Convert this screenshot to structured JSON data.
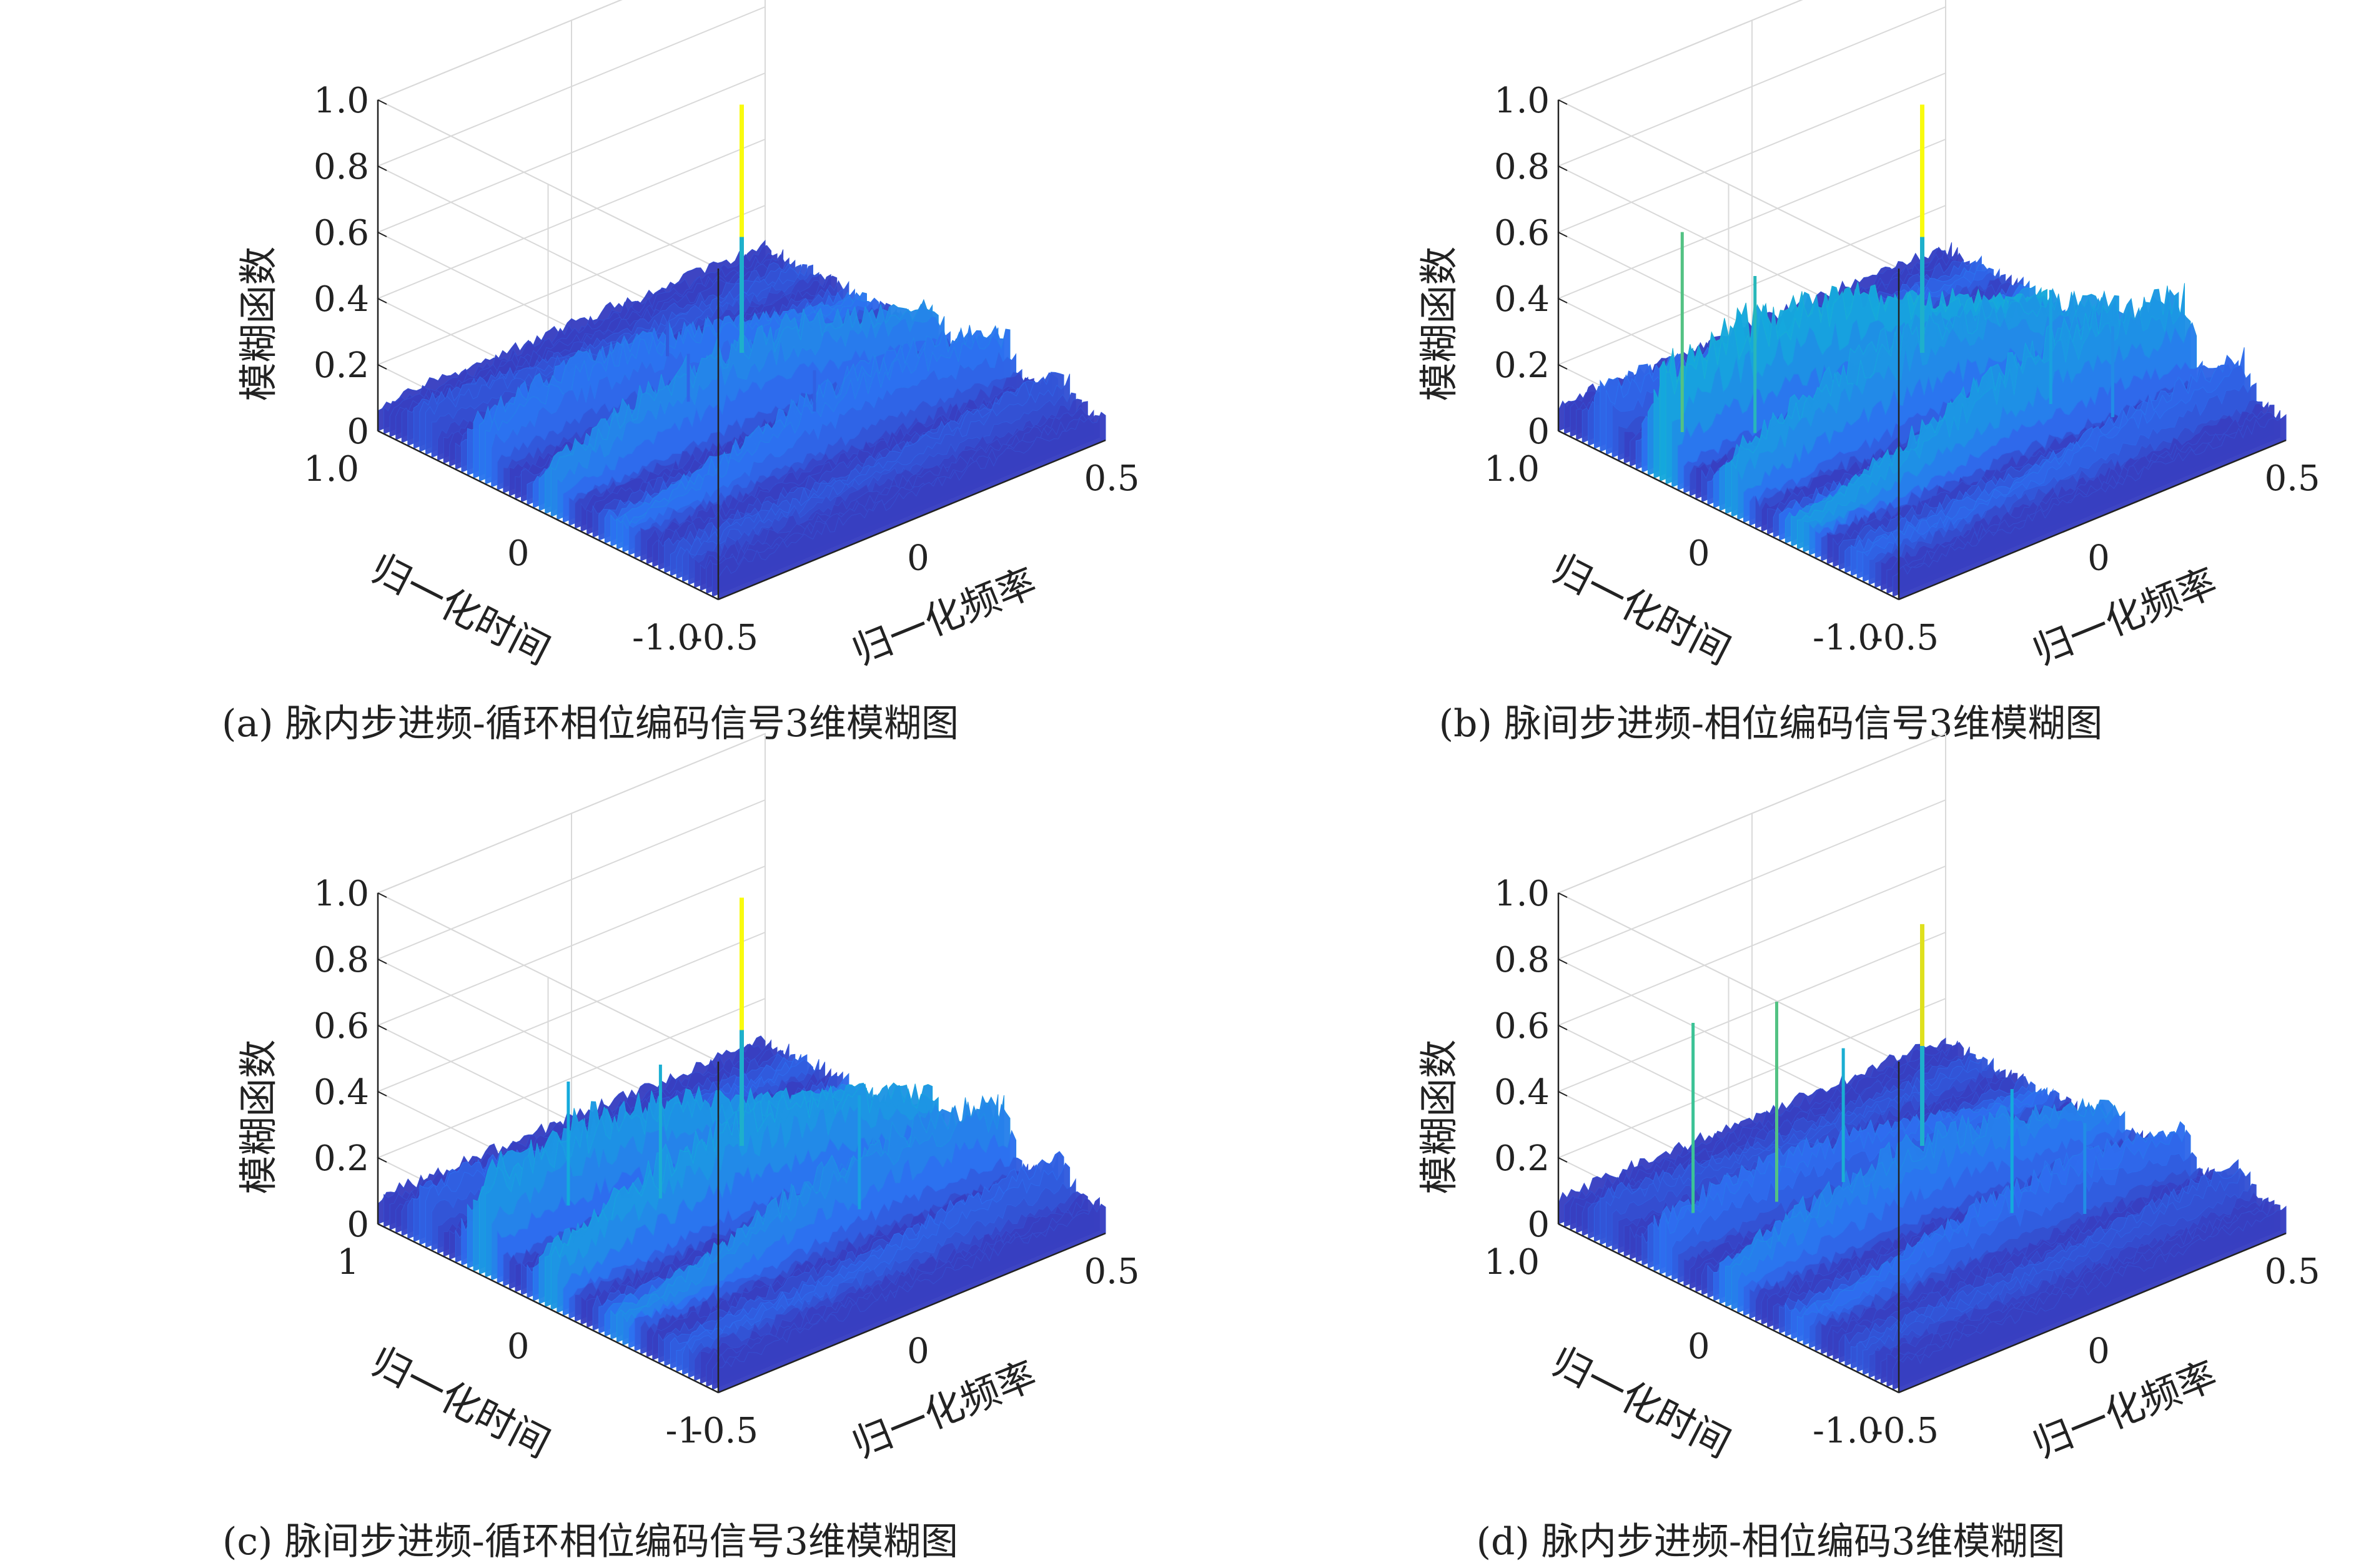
{
  "figure_captions": [
    "(a) 脉内步进频-循环相位编码信号3维模糊图",
    "(b) 脉间步进频-相位编码信号3维模糊图",
    "(c) 脉间步进频-循环相位编码信号3维模糊图",
    "(d) 脉内步进频-相位编码3维模糊图"
  ],
  "chart_data": [
    {
      "type": "surface3d",
      "title": "(a) 脉内步进频-循环相位编码信号3维模糊图",
      "xlabel": "归一化频率",
      "ylabel": "归一化时间",
      "zlabel": "模糊函数",
      "x_ticks": [
        "-0.5",
        "0",
        "0.5"
      ],
      "y_ticks": [
        "1.0",
        "0",
        "-1.0"
      ],
      "z_ticks": [
        "0",
        "0.2",
        "0.4",
        "0.6",
        "0.8",
        "1.0"
      ],
      "xlim": [
        -0.5,
        0.5
      ],
      "ylim": [
        -1.0,
        1.0
      ],
      "zlim": [
        0,
        1.0
      ],
      "colormap": "parula",
      "main_peak": {
        "x": 0,
        "y": 0,
        "z": 1.0
      },
      "ridges": [
        {
          "y": 0.75,
          "x_center": -0.5,
          "level": 0.15
        },
        {
          "y": 0.4,
          "x_center": -0.2,
          "level": 0.25
        },
        {
          "y": 0.0,
          "x_center": 0.0,
          "level": 0.3
        },
        {
          "y": -0.4,
          "x_center": 0.2,
          "level": 0.25
        },
        {
          "y": -0.75,
          "x_center": 0.45,
          "level": 0.15
        }
      ],
      "spikes": [
        {
          "x": -0.05,
          "y": 0.2,
          "z": 0.22
        },
        {
          "x": 0.1,
          "y": -0.2,
          "z": 0.2
        },
        {
          "x": 0.05,
          "y": 0.55,
          "z": 0.18
        }
      ],
      "floor": 0.1
    },
    {
      "type": "surface3d",
      "title": "(b) 脉间步进频-相位编码信号3维模糊图",
      "xlabel": "归一化频率",
      "ylabel": "归一化时间",
      "zlabel": "模糊函数",
      "x_ticks": [
        "-0.5",
        "0",
        "0.5"
      ],
      "y_ticks": [
        "1.0",
        "0",
        "-1.0"
      ],
      "z_ticks": [
        "0",
        "0.2",
        "0.4",
        "0.6",
        "0.8",
        "1.0"
      ],
      "xlim": [
        -0.5,
        0.5
      ],
      "ylim": [
        -1.0,
        1.0
      ],
      "zlim": [
        0,
        1.0
      ],
      "colormap": "parula",
      "main_peak": {
        "x": 0,
        "y": 0,
        "z": 1.0
      },
      "ridges": [
        {
          "y": 0.75,
          "x_center": -0.45,
          "level": 0.2
        },
        {
          "y": 0.4,
          "x_center": -0.25,
          "level": 0.4
        },
        {
          "y": 0.0,
          "x_center": 0.0,
          "level": 0.35
        },
        {
          "y": -0.4,
          "x_center": 0.25,
          "level": 0.35
        },
        {
          "y": -0.75,
          "x_center": 0.45,
          "level": 0.2
        }
      ],
      "spikes": [
        {
          "x": -0.4,
          "y": 0.5,
          "z": 0.68
        },
        {
          "x": -0.3,
          "y": 0.3,
          "z": 0.55
        },
        {
          "x": 0.2,
          "y": -0.3,
          "z": 0.42
        },
        {
          "x": 0.25,
          "y": -0.55,
          "z": 0.35
        }
      ],
      "floor": 0.1
    },
    {
      "type": "surface3d",
      "title": "(c) 脉间步进频-循环相位编码信号3维模糊图",
      "xlabel": "归一化频率",
      "ylabel": "归一化时间",
      "zlabel": "模糊函数",
      "x_ticks": [
        "-0.5",
        "0",
        "0.5"
      ],
      "y_ticks": [
        "1",
        "0",
        "-1"
      ],
      "z_ticks": [
        "0",
        "0.2",
        "0.4",
        "0.6",
        "0.8",
        "1.0"
      ],
      "xlim": [
        -0.5,
        0.5
      ],
      "ylim": [
        -1,
        1
      ],
      "zlim": [
        0,
        1.0
      ],
      "colormap": "parula",
      "main_peak": {
        "x": 0,
        "y": 0,
        "z": 1.0
      },
      "ridges": [
        {
          "y": 0.75,
          "x_center": -0.45,
          "level": 0.18
        },
        {
          "y": 0.4,
          "x_center": -0.25,
          "level": 0.35
        },
        {
          "y": 0.0,
          "x_center": 0.0,
          "level": 0.35
        },
        {
          "y": -0.4,
          "x_center": 0.25,
          "level": 0.3
        },
        {
          "y": -0.75,
          "x_center": 0.45,
          "level": 0.18
        }
      ],
      "spikes": [
        {
          "x": -0.25,
          "y": 0.45,
          "z": 0.45
        },
        {
          "x": -0.1,
          "y": 0.25,
          "z": 0.48
        },
        {
          "x": 0.15,
          "y": -0.35,
          "z": 0.42
        }
      ],
      "floor": 0.1
    },
    {
      "type": "surface3d",
      "title": "(d) 脉内步进频-相位编码3维模糊图",
      "xlabel": "归一化频率",
      "ylabel": "归一化时间",
      "zlabel": "模糊函数",
      "x_ticks": [
        "-0.5",
        "0",
        "0.5"
      ],
      "y_ticks": [
        "1.0",
        "0",
        "-1.0"
      ],
      "z_ticks": [
        "0",
        "0.2",
        "0.4",
        "0.6",
        "0.8",
        "1.0"
      ],
      "xlim": [
        -0.5,
        0.5
      ],
      "ylim": [
        -1.0,
        1.0
      ],
      "zlim": [
        0,
        1.0
      ],
      "colormap": "parula",
      "main_peak": {
        "x": 0,
        "y": 0,
        "z": 0.92
      },
      "ridges": [
        {
          "y": 0.75,
          "x_center": -0.5,
          "level": 0.15
        },
        {
          "y": 0.4,
          "x_center": -0.2,
          "level": 0.22
        },
        {
          "y": 0.0,
          "x_center": 0.0,
          "level": 0.28
        },
        {
          "y": -0.4,
          "x_center": 0.2,
          "level": 0.22
        },
        {
          "y": -0.75,
          "x_center": 0.45,
          "level": 0.15
        }
      ],
      "spikes": [
        {
          "x": -0.35,
          "y": 0.55,
          "z": 0.65
        },
        {
          "x": -0.2,
          "y": 0.4,
          "z": 0.68
        },
        {
          "x": -0.05,
          "y": 0.35,
          "z": 0.48
        },
        {
          "x": 0.1,
          "y": -0.3,
          "z": 0.45
        },
        {
          "x": 0.2,
          "y": -0.5,
          "z": 0.35
        }
      ],
      "floor": 0.1
    }
  ]
}
